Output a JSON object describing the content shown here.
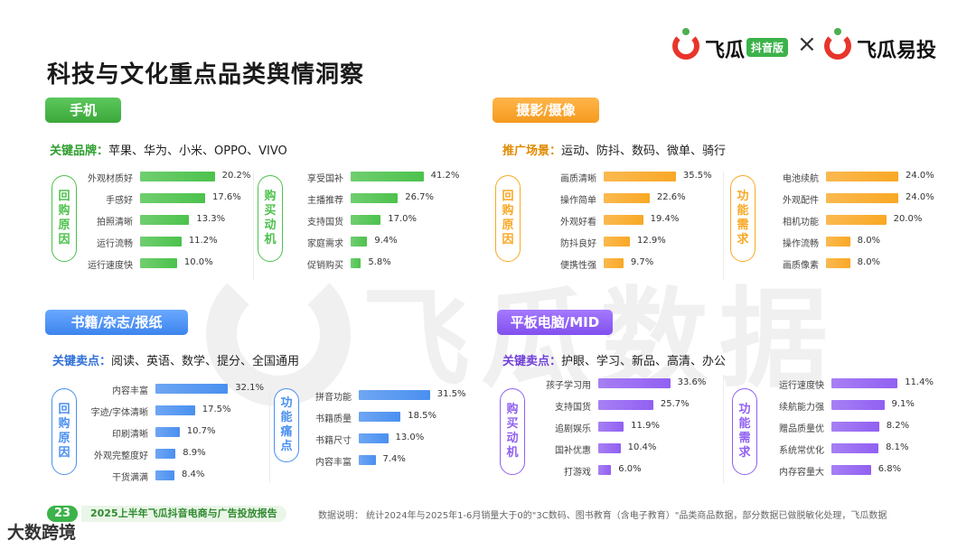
{
  "page": {
    "title": "科技与文化重点品类舆情洞察",
    "page_number": "23",
    "report_title": "2025上半年飞瓜抖音电商与广告投放报告",
    "footnote": "数据说明：  统计2024年与2025年1-6月销量大于0的\"3C数码、图书教育（含电子教育）\"品类商品数据，部分数据已做脱敏化处理，飞瓜数据",
    "watermark": "飞瓜数据",
    "corner_brand": "大数跨境"
  },
  "logo": {
    "brand1": "飞瓜",
    "badge": "抖音版",
    "times": "×",
    "brand2": "飞瓜易投",
    "colors": {
      "red": "#e8352b",
      "green": "#3bb34a"
    }
  },
  "chart_data": [
    {
      "type": "bar",
      "panel": "手机",
      "key_label": "关键品牌：",
      "key_value": "苹果、华为、小米、OPPO、VIVO",
      "color": "#4cc24c",
      "groups": [
        {
          "name": "回购原因",
          "categories": [
            "外观材质好",
            "手感好",
            "拍照清晰",
            "运行流畅",
            "运行速度快"
          ],
          "values": [
            20.2,
            17.6,
            13.3,
            11.2,
            10.0
          ],
          "labels": [
            "20.2%",
            "17.6%",
            "13.3%",
            "11.2%",
            "10.0%"
          ]
        },
        {
          "name": "购买动机",
          "categories": [
            "享受国补",
            "主播推荐",
            "支持国货",
            "家庭需求",
            "促销购买"
          ],
          "values": [
            41.2,
            26.7,
            17.0,
            9.4,
            5.8
          ],
          "labels": [
            "41.2%",
            "26.7%",
            "17.0%",
            "9.4%",
            "5.8%"
          ]
        }
      ]
    },
    {
      "type": "bar",
      "panel": "摄影/摄像",
      "key_label": "推广场景：",
      "key_value": "运动、防抖、数码、微单、骑行",
      "color": "#f9a825",
      "groups": [
        {
          "name": "回购原因",
          "categories": [
            "画质清晰",
            "操作简单",
            "外观好看",
            "防抖良好",
            "便携性强"
          ],
          "values": [
            35.5,
            22.6,
            19.4,
            12.9,
            9.7
          ],
          "labels": [
            "35.5%",
            "22.6%",
            "19.4%",
            "12.9%",
            "9.7%"
          ]
        },
        {
          "name": "功能需求",
          "categories": [
            "电池续航",
            "外观配件",
            "相机功能",
            "操作流畅",
            "画质像素"
          ],
          "values": [
            24.0,
            24.0,
            20.0,
            8.0,
            8.0
          ],
          "labels": [
            "24.0%",
            "24.0%",
            "20.0%",
            "8.0%",
            "8.0%"
          ]
        }
      ]
    },
    {
      "type": "bar",
      "panel": "书籍/杂志/报纸",
      "key_label": "关键卖点：",
      "key_value": "阅读、英语、数学、提分、全国通用",
      "color": "#4a90f0",
      "groups": [
        {
          "name": "回购原因",
          "categories": [
            "内容丰富",
            "字迹/字体清晰",
            "印刷清晰",
            "外观完整度好",
            "干货满满"
          ],
          "values": [
            32.1,
            17.5,
            10.7,
            8.9,
            8.4
          ],
          "labels": [
            "32.1%",
            "17.5%",
            "10.7%",
            "8.9%",
            "8.4%"
          ]
        },
        {
          "name": "功能痛点",
          "categories": [
            "拼音功能",
            "书籍质量",
            "书籍尺寸",
            "内容丰富"
          ],
          "values": [
            31.5,
            18.5,
            13.0,
            7.4
          ],
          "labels": [
            "31.5%",
            "18.5%",
            "13.0%",
            "7.4%"
          ]
        }
      ]
    },
    {
      "type": "bar",
      "panel": "平板电脑/MID",
      "key_label": "关键卖点：",
      "key_value": "护眼、学习、新品、高清、办公",
      "color": "#9160f2",
      "groups": [
        {
          "name": "购买动机",
          "categories": [
            "孩子学习用",
            "支持国货",
            "追剧娱乐",
            "国补优惠",
            "打游戏"
          ],
          "values": [
            33.6,
            25.7,
            11.9,
            10.4,
            6.0
          ],
          "labels": [
            "33.6%",
            "25.7%",
            "11.9%",
            "10.4%",
            "6.0%"
          ]
        },
        {
          "name": "功能需求",
          "categories": [
            "运行速度快",
            "续航能力强",
            "赠品质量优",
            "系统常优化",
            "内存容量大"
          ],
          "values": [
            11.4,
            9.1,
            8.2,
            8.1,
            6.8
          ],
          "labels": [
            "11.4%",
            "9.1%",
            "8.2%",
            "8.1%",
            "6.8%"
          ]
        }
      ]
    }
  ]
}
